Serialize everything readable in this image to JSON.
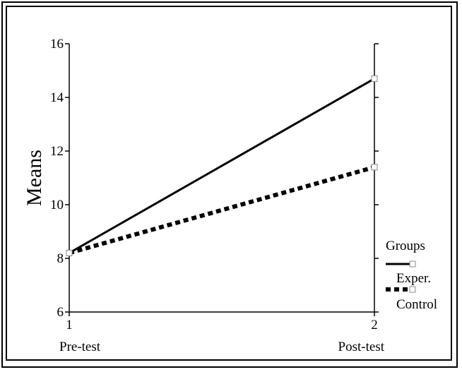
{
  "chart_data": {
    "type": "line",
    "x": [
      1,
      2
    ],
    "x_tick_labels": [
      "1",
      "2"
    ],
    "x_category_labels": [
      "Pre-test",
      "Post-test"
    ],
    "ylabel": "Means",
    "ylim": [
      6,
      16
    ],
    "y_ticks": [
      6,
      8,
      10,
      12,
      14,
      16
    ],
    "y_tick_labels": [
      "6",
      "8",
      "10",
      "12",
      "14",
      "16"
    ],
    "grid": false,
    "legend": {
      "title": "Groups",
      "placement": "right"
    },
    "series": [
      {
        "name": "Exper.",
        "values": [
          8.2,
          14.7
        ],
        "style": "solid",
        "color": "#000000"
      },
      {
        "name": "Control",
        "values": [
          8.2,
          11.4
        ],
        "style": "dotted",
        "color": "#000000"
      }
    ]
  }
}
